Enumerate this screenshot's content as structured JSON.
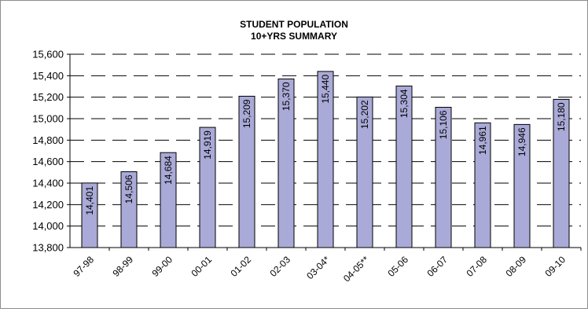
{
  "chart_data": {
    "type": "bar",
    "title": "STUDENT POPULATION",
    "subtitle": "10+YRS SUMMARY",
    "xlabel": "",
    "ylabel": "",
    "categories": [
      "97-98",
      "98-99",
      "99-00",
      "00-01",
      "01-02",
      "02-03",
      "03-04*",
      "04-05**",
      "05-06",
      "06-07",
      "07-08",
      "08-09",
      "09-10"
    ],
    "values": [
      14401,
      14506,
      14684,
      14919,
      15209,
      15370,
      15440,
      15202,
      15304,
      15106,
      14961,
      14946,
      15180
    ],
    "data_labels": [
      "14,401",
      "14,506",
      "14,684",
      "14,919",
      "15,209",
      "15,370",
      "15,440",
      "15,202",
      "15,304",
      "15,106",
      "14,961",
      "14,946",
      "15,180"
    ],
    "ylim": [
      13800,
      15600
    ],
    "yticks": [
      13800,
      14000,
      14200,
      14400,
      14600,
      14800,
      15000,
      15200,
      15400,
      15600
    ],
    "ytick_labels": [
      "13,800",
      "14,000",
      "14,200",
      "14,400",
      "14,600",
      "14,800",
      "15,000",
      "15,200",
      "15,400",
      "15,600"
    ],
    "grid": "horizontal dashed",
    "legend": "none",
    "bar_color": "#aaaad8",
    "bar_edge_color": "#000000"
  }
}
